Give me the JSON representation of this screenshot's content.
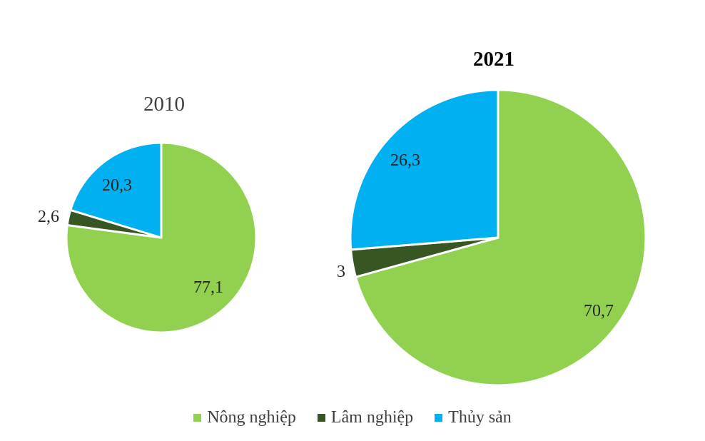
{
  "chart_data": {
    "type": "pie",
    "categories": [
      "Nông nghiệp",
      "Lâm nghiệp",
      "Thủy sản"
    ],
    "colors": [
      "#92d050",
      "#375623",
      "#00b0f0"
    ],
    "legend_position": "bottom",
    "pies": [
      {
        "title": "2010",
        "values": [
          77.1,
          2.6,
          20.3
        ],
        "labels": [
          "77,1",
          "2,6",
          "20,3"
        ]
      },
      {
        "title": "2021",
        "values": [
          70.7,
          3,
          26.3
        ],
        "labels": [
          "70,7",
          "3",
          "26,3"
        ]
      }
    ]
  }
}
